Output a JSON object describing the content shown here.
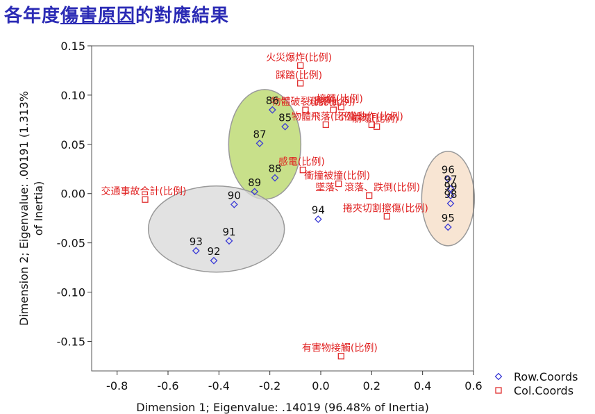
{
  "title": {
    "part1": "各年度",
    "part2": "傷害原因",
    "part3": "的對應結果"
  },
  "colors": {
    "title": "#2b2bb5",
    "row_marker": "#3a3ad6",
    "col_marker": "#e03030",
    "col_label": "#e02020",
    "ellipse_green": "#c8e08a",
    "ellipse_gray": "#d8d8d8",
    "ellipse_peach": "#f6dcc4"
  },
  "chart_data": {
    "type": "scatter",
    "xlabel": "Dimension 1; Eigenvalue: .14019 (96.48% of Inertia)",
    "ylabel": "Dimension 2; Eigenvalue: .00191 (1.313% of Inertia)",
    "xlim": [
      -0.9,
      0.6
    ],
    "ylim": [
      -0.18,
      0.15
    ],
    "x_ticks": [
      -0.8,
      -0.6,
      -0.4,
      -0.2,
      0.0,
      0.2,
      0.4,
      0.6
    ],
    "x_tick_labels": [
      "-0.8",
      "-0.6",
      "-0.4",
      "-0.2",
      "0.0",
      "0.2",
      "0.4",
      "0.6"
    ],
    "y_ticks": [
      0.15,
      0.1,
      0.05,
      0.0,
      -0.05,
      -0.1,
      -0.15
    ],
    "y_tick_labels": [
      "0.15",
      "0.10",
      "0.05",
      "0.00",
      "-0.05",
      "-0.10",
      "-0.15"
    ],
    "grid": false,
    "legend_position": "bottom-right",
    "legend": [
      {
        "name": "Row.Coords",
        "marker": "diamond"
      },
      {
        "name": "Col.Coords",
        "marker": "square"
      }
    ],
    "row_points": [
      {
        "label": "86",
        "x": -0.19,
        "y": 0.085
      },
      {
        "label": "85",
        "x": -0.14,
        "y": 0.068
      },
      {
        "label": "87",
        "x": -0.24,
        "y": 0.051
      },
      {
        "label": "88",
        "x": -0.18,
        "y": 0.016
      },
      {
        "label": "89",
        "x": -0.26,
        "y": 0.002
      },
      {
        "label": "90",
        "x": -0.34,
        "y": -0.011
      },
      {
        "label": "91",
        "x": -0.36,
        "y": -0.048
      },
      {
        "label": "93",
        "x": -0.49,
        "y": -0.058
      },
      {
        "label": "92",
        "x": -0.42,
        "y": -0.068
      },
      {
        "label": "94",
        "x": -0.01,
        "y": -0.026
      },
      {
        "label": "96",
        "x": 0.5,
        "y": 0.015
      },
      {
        "label": "97",
        "x": 0.51,
        "y": 0.005
      },
      {
        "label": "99",
        "x": 0.51,
        "y": -0.002
      },
      {
        "label": "98",
        "x": 0.51,
        "y": -0.01
      },
      {
        "label": "95",
        "x": 0.5,
        "y": -0.034
      }
    ],
    "col_points": [
      {
        "label": "火災爆炸(比例)",
        "x": -0.08,
        "y": 0.13
      },
      {
        "label": "踩踏(比例)",
        "x": -0.08,
        "y": 0.112
      },
      {
        "label": "物體破裂(比例)",
        "x": -0.06,
        "y": 0.085
      },
      {
        "label": "溺斃(比例)",
        "x": 0.05,
        "y": 0.085
      },
      {
        "label": "接觸(比例)",
        "x": 0.08,
        "y": 0.088
      },
      {
        "label": "物體飛落(比例)",
        "x": 0.02,
        "y": 0.07
      },
      {
        "label": "不當動作(比例)",
        "x": 0.2,
        "y": 0.07
      },
      {
        "label": "崩塌(比例)",
        "x": 0.22,
        "y": 0.068
      },
      {
        "label": "感電(比例)",
        "x": -0.07,
        "y": 0.024
      },
      {
        "label": "衝撞被撞(比例)",
        "x": 0.07,
        "y": 0.01
      },
      {
        "label": "墜落、滾落、跌倒(比例)",
        "x": 0.19,
        "y": -0.002
      },
      {
        "label": "捲夾切割擦傷(比例)",
        "x": 0.26,
        "y": -0.023
      },
      {
        "label": "交通事故合計(比例)",
        "x": -0.69,
        "y": -0.006
      },
      {
        "label": "有害物接觸(比例)",
        "x": 0.08,
        "y": -0.165
      }
    ]
  }
}
